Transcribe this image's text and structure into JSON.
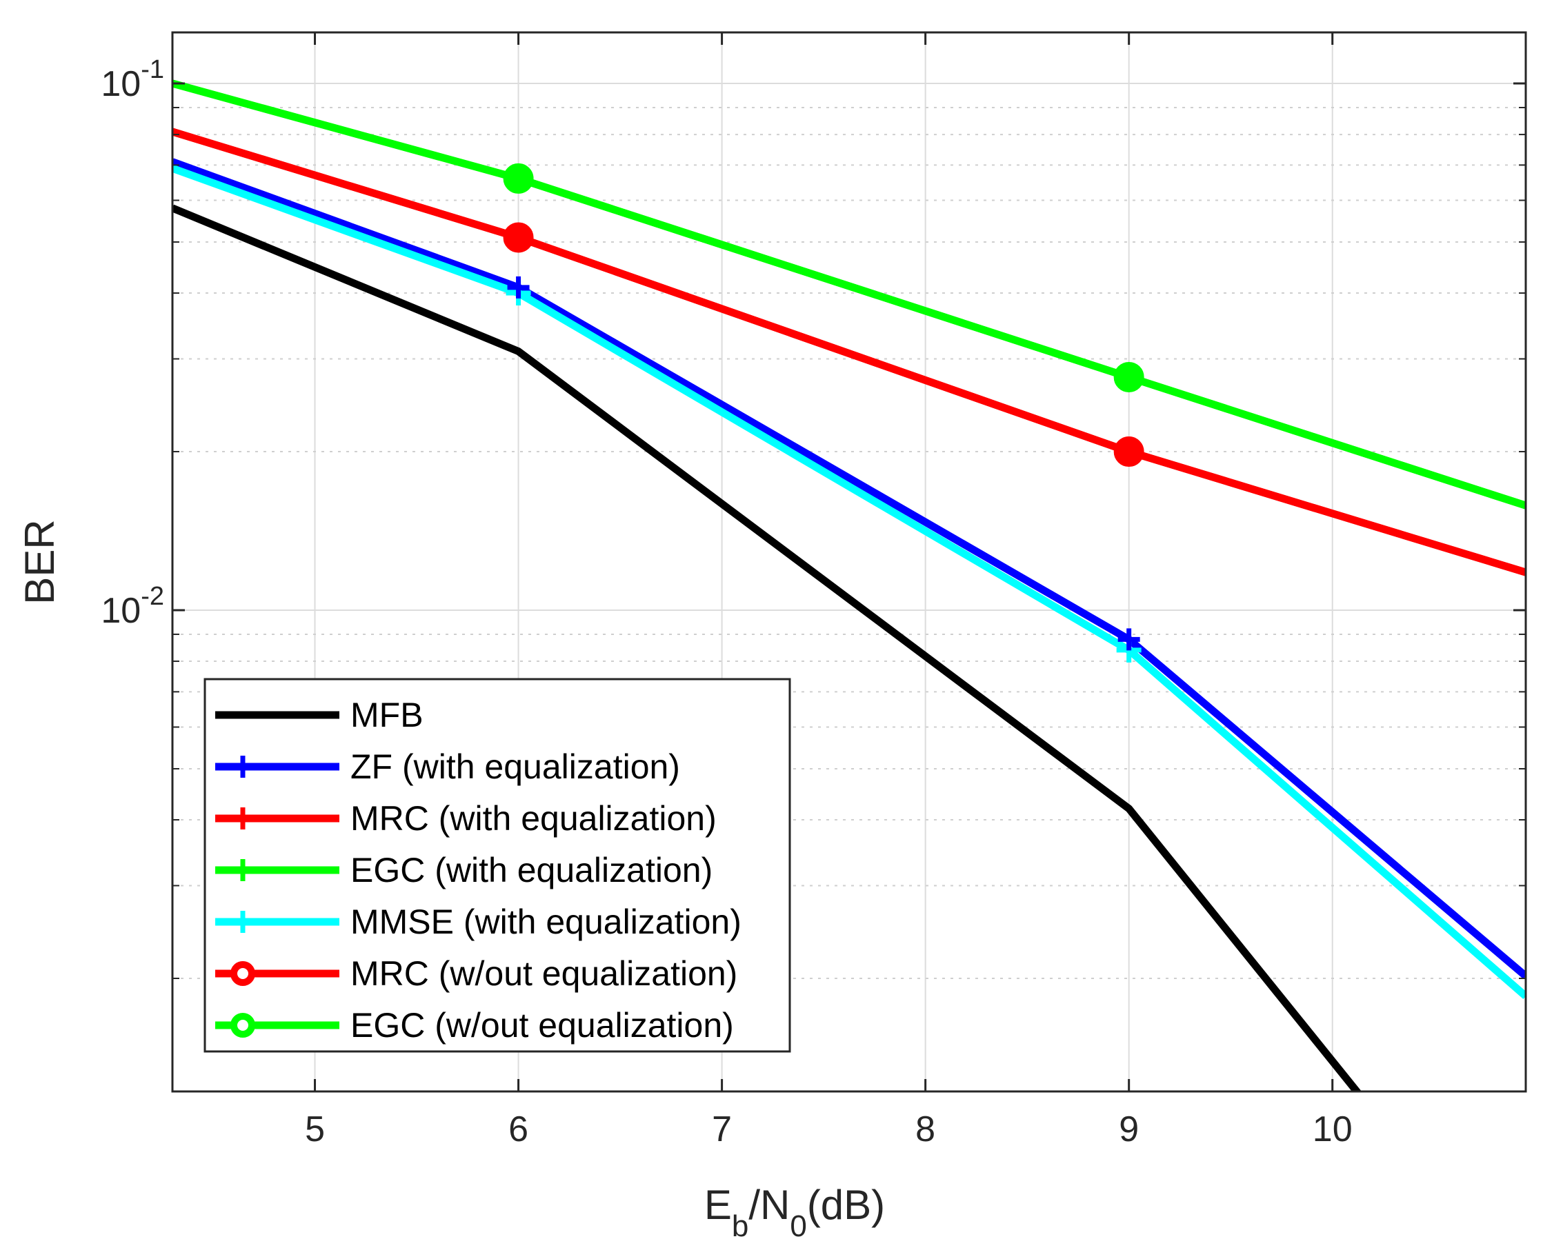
{
  "chart_data": {
    "type": "line",
    "xscale": "linear",
    "yscale": "log",
    "xlim": [
      4.3,
      10.95
    ],
    "ylim": [
      0.00122,
      0.125
    ],
    "xticks": [
      5,
      6,
      7,
      8,
      9,
      10
    ],
    "xtick_labels": [
      "5",
      "6",
      "7",
      "8",
      "9",
      "10"
    ],
    "yticks": [
      {
        "value": 0.1,
        "base": "10",
        "exp": "-1"
      },
      {
        "value": 0.01,
        "base": "10",
        "exp": "-2"
      }
    ],
    "xlabel": {
      "main1": "E",
      "sub1": "b",
      "mid": "/N",
      "sub2": "0",
      "end": "(dB)"
    },
    "ylabel": "BER",
    "grid": true,
    "minor_grid": true,
    "legend_position": "bottom-left",
    "series": [
      {
        "name": "MFB",
        "color": "#000000",
        "marker": "none",
        "legend_marker": "none",
        "width": 11,
        "x": [
          4.3,
          6,
          9,
          10.15
        ],
        "y": [
          0.058,
          0.031,
          0.0042,
          0.00118
        ]
      },
      {
        "name": "ZF (with equalization)",
        "color": "#0000ff",
        "marker": "none",
        "legend_marker": "plus",
        "width": 11,
        "x": [
          4.3,
          6,
          9,
          10.95
        ],
        "y": [
          0.071,
          0.041,
          0.0088,
          0.00202
        ]
      },
      {
        "name": "MRC (with equalization)",
        "color": "#ff0000",
        "marker": "none",
        "legend_marker": "plus",
        "width": 11,
        "x": [
          4.3,
          6,
          9,
          10.95
        ],
        "y": [
          0.081,
          0.051,
          0.02,
          0.0118
        ]
      },
      {
        "name": "EGC (with equalization)",
        "color": "#00ff00",
        "marker": "none",
        "legend_marker": "plus",
        "width": 11,
        "x": [
          4.3,
          6,
          9,
          10.95
        ],
        "y": [
          0.1,
          0.066,
          0.0277,
          0.0158
        ]
      },
      {
        "name": "MMSE (with equalization)",
        "color": "#00ffff",
        "marker": "plus",
        "legend_marker": "plus",
        "width": 11,
        "x": [
          4.3,
          6,
          9,
          10.95
        ],
        "y": [
          0.069,
          0.04,
          0.0084,
          0.00185
        ]
      },
      {
        "name": "MRC (w/out equalization)",
        "color": "#ff0000",
        "marker": "circle",
        "legend_marker": "circle",
        "width": 11,
        "x": [
          4.3,
          6,
          9,
          10.95
        ],
        "y": [
          0.081,
          0.051,
          0.02,
          0.0118
        ]
      },
      {
        "name": "EGC (w/out equalization)",
        "color": "#00ff00",
        "marker": "circle",
        "legend_marker": "circle",
        "width": 11,
        "x": [
          4.3,
          6,
          9,
          10.95
        ],
        "y": [
          0.1,
          0.066,
          0.0277,
          0.0158
        ]
      }
    ]
  }
}
